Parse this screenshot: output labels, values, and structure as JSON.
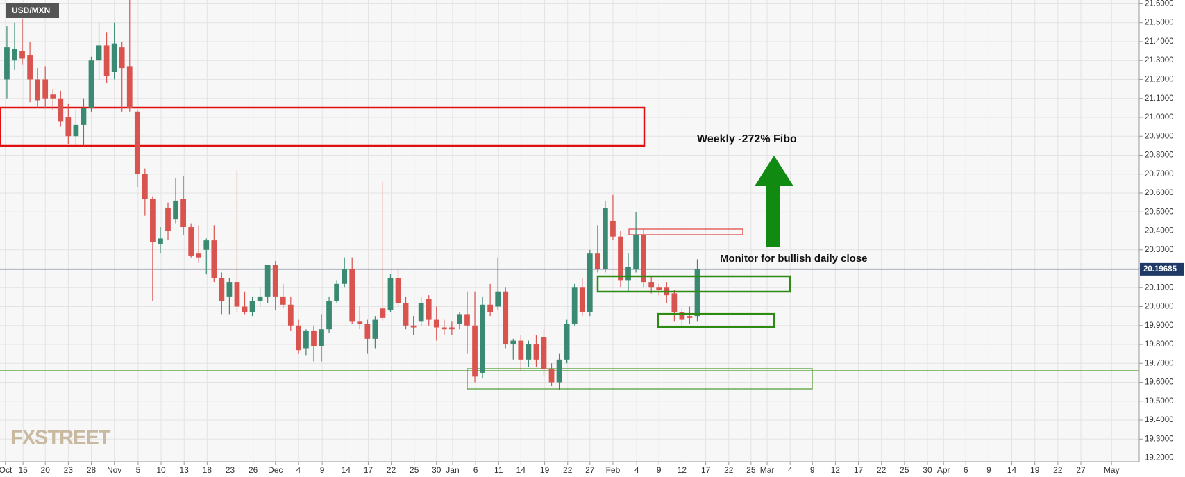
{
  "chart_data": {
    "type": "candlestick",
    "title": "USD/MXN",
    "watermark": "FXSTREET",
    "annotations": [
      "Weekly -272% Fibo",
      "Monitor for bullish daily close"
    ],
    "last_price": 20.19685,
    "up_color": "#3a8a73",
    "down_color": "#d9534f",
    "grid": true,
    "xlim": [
      -0.9,
      147.6
    ],
    "ylim": [
      19.18,
      21.62
    ],
    "xticks": [
      {
        "value": -0.2,
        "label": "Oct"
      },
      {
        "value": 2.1,
        "label": "15"
      },
      {
        "value": 5,
        "label": "20"
      },
      {
        "value": 8,
        "label": "23"
      },
      {
        "value": 11,
        "label": "28"
      },
      {
        "value": 14,
        "label": "Nov"
      },
      {
        "value": 17.1,
        "label": "5"
      },
      {
        "value": 20.1,
        "label": "10"
      },
      {
        "value": 23.1,
        "label": "13"
      },
      {
        "value": 26.1,
        "label": "18"
      },
      {
        "value": 29.1,
        "label": "23"
      },
      {
        "value": 32.1,
        "label": "26"
      },
      {
        "value": 35,
        "label": "Dec"
      },
      {
        "value": 38,
        "label": "4"
      },
      {
        "value": 41.1,
        "label": "9"
      },
      {
        "value": 44.2,
        "label": "14"
      },
      {
        "value": 47.1,
        "label": "17"
      },
      {
        "value": 50.1,
        "label": "22"
      },
      {
        "value": 53.1,
        "label": "25"
      },
      {
        "value": 56,
        "label": "30"
      },
      {
        "value": 58.1,
        "label": "Jan"
      },
      {
        "value": 61.1,
        "label": "6"
      },
      {
        "value": 64.1,
        "label": "11"
      },
      {
        "value": 67,
        "label": "14"
      },
      {
        "value": 70.1,
        "label": "19"
      },
      {
        "value": 73.1,
        "label": "22"
      },
      {
        "value": 76,
        "label": "27"
      },
      {
        "value": 79,
        "label": "Feb"
      },
      {
        "value": 82.1,
        "label": "4"
      },
      {
        "value": 85,
        "label": "9"
      },
      {
        "value": 88,
        "label": "12"
      },
      {
        "value": 91.1,
        "label": "17"
      },
      {
        "value": 94.1,
        "label": "22"
      },
      {
        "value": 97,
        "label": "25"
      },
      {
        "value": 99.1,
        "label": "Mar"
      },
      {
        "value": 102.1,
        "label": "4"
      },
      {
        "value": 105,
        "label": "9"
      },
      {
        "value": 108,
        "label": "12"
      },
      {
        "value": 111,
        "label": "17"
      },
      {
        "value": 114,
        "label": "22"
      },
      {
        "value": 117,
        "label": "25"
      },
      {
        "value": 120,
        "label": "30"
      },
      {
        "value": 122.1,
        "label": "Apr"
      },
      {
        "value": 125,
        "label": "6"
      },
      {
        "value": 128,
        "label": "9"
      },
      {
        "value": 131,
        "label": "14"
      },
      {
        "value": 134,
        "label": "19"
      },
      {
        "value": 137,
        "label": "22"
      },
      {
        "value": 140,
        "label": "27"
      },
      {
        "value": 144,
        "label": "May"
      }
    ],
    "yticks": [
      {
        "value": 19.2,
        "label": "19.2000"
      },
      {
        "value": 19.3,
        "label": "19.3000"
      },
      {
        "value": 19.4,
        "label": "19.4000"
      },
      {
        "value": 19.5,
        "label": "19.5000"
      },
      {
        "value": 19.6,
        "label": "19.6000"
      },
      {
        "value": 19.7,
        "label": "19.7000"
      },
      {
        "value": 19.8,
        "label": "19.8000"
      },
      {
        "value": 19.9,
        "label": "19.9000"
      },
      {
        "value": 20.0,
        "label": "20.0000"
      },
      {
        "value": 20.1,
        "label": "20.1000"
      },
      {
        "value": 20.2,
        "label": "20.2000"
      },
      {
        "value": 20.3,
        "label": "20.3000"
      },
      {
        "value": 20.4,
        "label": "20.4000"
      },
      {
        "value": 20.5,
        "label": "20.5000"
      },
      {
        "value": 20.6,
        "label": "20.6000"
      },
      {
        "value": 20.7,
        "label": "20.7000"
      },
      {
        "value": 20.8,
        "label": "20.8000"
      },
      {
        "value": 20.9,
        "label": "20.9000"
      },
      {
        "value": 21.0,
        "label": "21.0000"
      },
      {
        "value": 21.1,
        "label": "21.1000"
      },
      {
        "value": 21.2,
        "label": "21.2000"
      },
      {
        "value": 21.3,
        "label": "21.3000"
      },
      {
        "value": 21.4,
        "label": "21.4000"
      },
      {
        "value": 21.5,
        "label": "21.5000"
      },
      {
        "value": 21.6,
        "label": "21.6000"
      }
    ],
    "x": [
      0,
      1,
      2,
      3,
      4,
      5,
      6,
      7,
      8,
      9,
      10,
      11,
      12,
      13,
      14,
      15,
      16,
      17,
      18,
      19,
      20,
      21,
      22,
      23,
      24,
      25,
      26,
      27,
      28,
      29,
      30,
      31,
      32,
      33,
      34,
      35,
      36,
      37,
      38,
      39,
      40,
      41,
      42,
      43,
      44,
      45,
      46,
      47,
      48,
      49,
      50,
      51,
      52,
      53,
      54,
      55,
      56,
      57,
      58,
      59,
      60,
      61,
      62,
      63,
      64,
      65,
      66,
      67,
      68,
      69,
      70,
      71,
      72,
      73,
      74,
      75,
      76,
      77,
      78,
      79,
      80,
      81,
      82,
      83,
      84,
      85,
      86,
      87,
      88,
      89,
      90
    ],
    "open": [
      21.2,
      21.3,
      21.35,
      21.33,
      21.2,
      21.2,
      21.12,
      21.1,
      21.0,
      20.9,
      20.96,
      21.05,
      21.3,
      21.38,
      21.24,
      21.37,
      21.27,
      21.03,
      20.7,
      20.57,
      20.33,
      20.52,
      20.46,
      20.57,
      20.42,
      20.28,
      20.3,
      20.35,
      20.15,
      20.05,
      20.13,
      20.0,
      19.97,
      20.03,
      20.05,
      20.22,
      20.05,
      20.01,
      19.9,
      19.78,
      19.87,
      19.79,
      19.88,
      20.03,
      20.12,
      20.2,
      19.92,
      19.91,
      19.83,
      19.99,
      19.98,
      20.15,
      20.02,
      19.9,
      19.92,
      20.04,
      19.93,
      19.89,
      19.89,
      19.91,
      19.96,
      19.9,
      19.65,
      20.01,
      20.0,
      20.08,
      19.8,
      19.82,
      19.72,
      19.8,
      19.84,
      19.67,
      19.6,
      19.72,
      19.91,
      20.1,
      19.97,
      20.28,
      20.2,
      20.45,
      20.37,
      20.14,
      20.2,
      20.38,
      20.13,
      20.1,
      20.1,
      20.07,
      19.97,
      19.95,
      19.95
    ],
    "high": [
      21.48,
      21.5,
      21.52,
      21.4,
      21.26,
      21.27,
      21.15,
      21.14,
      21.07,
      21.04,
      21.1,
      21.32,
      21.5,
      21.45,
      21.5,
      21.4,
      21.62,
      21.04,
      20.73,
      20.58,
      20.42,
      20.55,
      20.68,
      20.69,
      20.44,
      20.43,
      20.36,
      20.43,
      20.18,
      20.15,
      20.72,
      20.08,
      20.05,
      20.1,
      20.22,
      20.24,
      20.12,
      20.05,
      19.93,
      19.88,
      19.9,
      19.96,
      20.05,
      20.14,
      20.26,
      20.26,
      20.0,
      19.93,
      19.95,
      20.66,
      20.17,
      20.2,
      20.05,
      19.95,
      20.05,
      20.06,
      20.0,
      19.93,
      19.92,
      19.97,
      20.08,
      20.08,
      20.05,
      20.12,
      20.26,
      20.1,
      19.83,
      19.85,
      19.82,
      19.85,
      19.88,
      19.7,
      19.75,
      19.93,
      20.12,
      20.15,
      20.3,
      20.43,
      20.56,
      20.59,
      20.4,
      20.28,
      20.5,
      20.41,
      20.16,
      20.12,
      20.13,
      20.09,
      19.99,
      20.0,
      20.25
    ],
    "low": [
      21.1,
      21.25,
      21.28,
      21.08,
      21.05,
      21.05,
      21.04,
      20.95,
      20.86,
      20.85,
      20.85,
      21.03,
      21.2,
      21.18,
      21.2,
      21.03,
      21.03,
      20.63,
      20.48,
      20.03,
      20.28,
      20.35,
      20.44,
      20.38,
      20.26,
      20.23,
      20.17,
      20.13,
      19.96,
      19.96,
      19.97,
      19.96,
      19.95,
      20.0,
      20.02,
      19.98,
      19.99,
      19.87,
      19.75,
      19.74,
      19.71,
      19.71,
      19.86,
      20.02,
      20.1,
      19.91,
      19.88,
      19.75,
      19.78,
      19.92,
      19.97,
      20.0,
      19.88,
      19.85,
      19.9,
      19.9,
      19.82,
      19.85,
      19.85,
      19.88,
      19.75,
      19.6,
      19.62,
      19.95,
      19.98,
      19.78,
      19.72,
      19.66,
      19.68,
      19.68,
      19.63,
      19.58,
      19.56,
      19.7,
      19.9,
      19.95,
      19.95,
      20.18,
      20.18,
      20.35,
      20.1,
      20.08,
      20.18,
      20.1,
      20.07,
      20.06,
      20.02,
      19.92,
      19.9,
      19.91,
      19.92
    ],
    "close": [
      21.37,
      21.36,
      21.31,
      21.2,
      21.09,
      21.1,
      21.1,
      20.98,
      20.9,
      20.96,
      21.05,
      21.3,
      21.38,
      21.22,
      21.39,
      21.26,
      21.05,
      20.7,
      20.57,
      20.34,
      20.36,
      20.4,
      20.56,
      20.42,
      20.27,
      20.26,
      20.35,
      20.15,
      20.03,
      20.13,
      20.0,
      19.97,
      20.03,
      20.05,
      20.22,
      20.05,
      20.01,
      19.9,
      19.77,
      19.87,
      19.79,
      19.88,
      20.03,
      20.12,
      20.2,
      19.92,
      19.91,
      19.83,
      19.93,
      19.94,
      20.15,
      20.02,
      19.9,
      19.89,
      20.02,
      19.93,
      19.89,
      19.88,
      19.88,
      19.96,
      19.9,
      19.63,
      20.01,
      19.97,
      20.08,
      19.8,
      19.82,
      19.72,
      19.8,
      19.72,
      19.67,
      19.6,
      19.72,
      19.91,
      20.1,
      19.97,
      20.28,
      20.2,
      20.52,
      20.37,
      20.14,
      20.21,
      20.38,
      20.13,
      20.1,
      20.09,
      20.06,
      19.97,
      19.93,
      19.94,
      20.2
    ]
  }
}
